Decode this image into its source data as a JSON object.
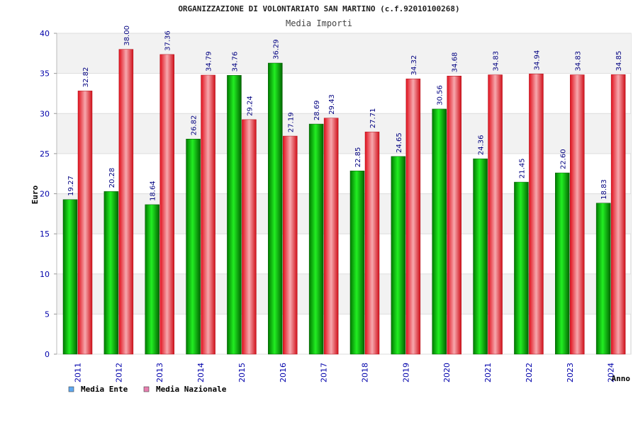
{
  "chart_data": {
    "type": "bar",
    "title": "ORGANIZZAZIONE DI VOLONTARIATO SAN MARTINO (c.f.92010100268)",
    "subtitle": "Media Importi",
    "xlabel": "Anno",
    "ylabel": "Euro",
    "ylim": [
      0,
      40
    ],
    "yticks": [
      0,
      5,
      10,
      15,
      20,
      25,
      30,
      35,
      40
    ],
    "categories": [
      "2011",
      "2012",
      "2013",
      "2014",
      "2015",
      "2016",
      "2017",
      "2018",
      "2019",
      "2020",
      "2021",
      "2022",
      "2023",
      "2024"
    ],
    "series": [
      {
        "name": "Media Ente",
        "color": "#00c000",
        "legend_color": "#5fa8f0",
        "values": [
          19.27,
          20.28,
          18.64,
          26.82,
          34.76,
          36.29,
          28.69,
          22.85,
          24.65,
          30.56,
          24.36,
          21.45,
          22.6,
          18.83
        ],
        "labels": [
          "19.27",
          "20.28",
          "18.64",
          "26.82",
          "34.76",
          "36.29",
          "28.69",
          "22.85",
          "24.65",
          "30.56",
          "24.36",
          "21.45",
          "22.60",
          "18.83"
        ]
      },
      {
        "name": "Media Nazionale",
        "color": "#e8202a",
        "legend_color": "#e87fb0",
        "values": [
          32.82,
          38.0,
          37.36,
          34.79,
          29.24,
          27.19,
          29.43,
          27.71,
          34.32,
          34.68,
          34.83,
          34.94,
          34.83,
          34.85
        ],
        "labels": [
          "32.82",
          "38.00",
          "37.36",
          "34.79",
          "29.24",
          "27.19",
          "29.43",
          "27.71",
          "34.32",
          "34.68",
          "34.83",
          "34.94",
          "34.83",
          "34.85"
        ]
      }
    ],
    "grid": true,
    "legend": "bottom-left"
  }
}
